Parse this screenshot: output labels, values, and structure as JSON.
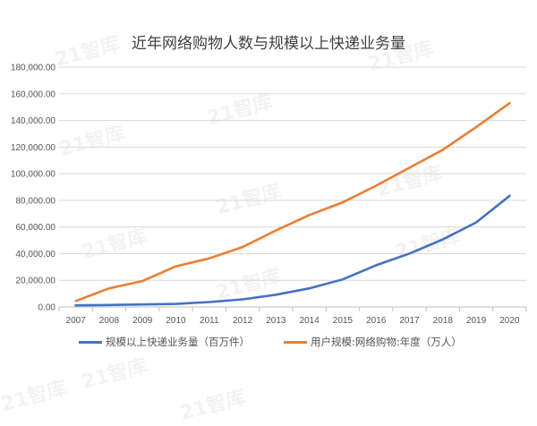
{
  "watermark": "21智库",
  "chart_data": {
    "type": "line",
    "title": "近年网络购物人数与规模以上快递业务量",
    "xlabel": "",
    "ylabel": "",
    "ylim": [
      0,
      180000
    ],
    "yticks": [
      "0.00",
      "20,000.00",
      "40,000.00",
      "60,000.00",
      "80,000.00",
      "100,000.00",
      "120,000.00",
      "140,000.00",
      "160,000.00",
      "180,000.00"
    ],
    "grid": true,
    "legend_position": "bottom",
    "categories": [
      "2007",
      "2008",
      "2009",
      "2010",
      "2011",
      "2012",
      "2013",
      "2014",
      "2015",
      "2016",
      "2017",
      "2018",
      "2019",
      "2020"
    ],
    "series": [
      {
        "name": "规模以上快递业务量（百万件）",
        "color": "#4472C4",
        "values": [
          1200,
          1500,
          1900,
          2300,
          3700,
          5700,
          9200,
          14000,
          20700,
          31300,
          40100,
          50700,
          63500,
          83400
        ]
      },
      {
        "name": "用户规模:网络购物:年度（万人）",
        "color": "#ED7D31",
        "values": [
          4500,
          14000,
          19500,
          30500,
          36500,
          45000,
          57500,
          69000,
          78500,
          91000,
          104500,
          118000,
          135000,
          153000
        ]
      }
    ]
  }
}
